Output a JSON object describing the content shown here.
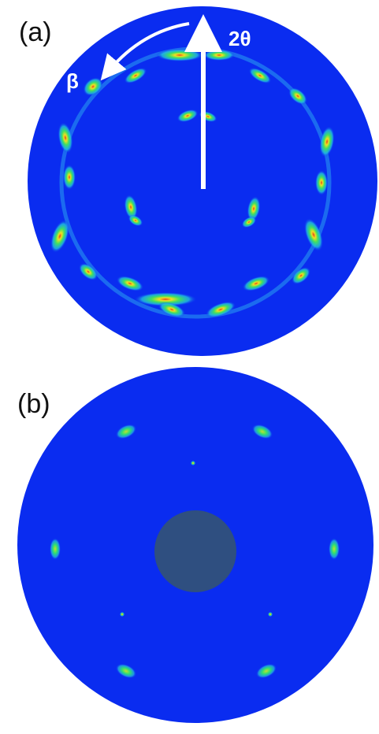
{
  "panels": [
    {
      "label": "(a)",
      "annotations": {
        "two_theta": "2θ",
        "beta": "β"
      }
    },
    {
      "label": "(b)"
    }
  ]
}
